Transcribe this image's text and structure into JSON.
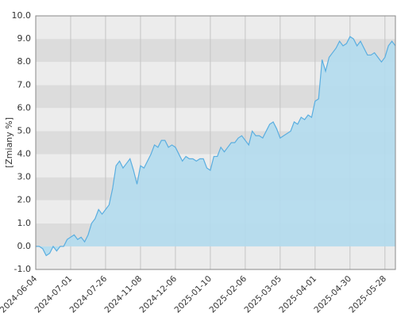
{
  "chart_data": {
    "type": "area",
    "y_label": "[Zmiany %]",
    "categories": [
      "2024-06-04",
      null,
      null,
      null,
      null,
      null,
      null,
      null,
      null,
      null,
      "2024-07-01",
      null,
      null,
      null,
      null,
      null,
      null,
      null,
      null,
      null,
      "2024-07-26",
      null,
      null,
      null,
      null,
      null,
      null,
      null,
      null,
      null,
      "2024-11-08",
      null,
      null,
      null,
      null,
      null,
      null,
      null,
      null,
      null,
      "2024-12-06",
      null,
      null,
      null,
      null,
      null,
      null,
      null,
      null,
      null,
      "2025-01-10",
      null,
      null,
      null,
      null,
      null,
      null,
      null,
      null,
      null,
      "2025-02-06",
      null,
      null,
      null,
      null,
      null,
      null,
      null,
      null,
      null,
      "2025-03-05",
      null,
      null,
      null,
      null,
      null,
      null,
      null,
      null,
      null,
      "2025-04-01",
      null,
      null,
      null,
      null,
      null,
      null,
      null,
      null,
      null,
      "2025-04-30",
      null,
      null,
      null,
      null,
      null,
      null,
      null,
      null,
      null,
      "2025-05-28",
      null,
      null,
      null
    ],
    "values": [
      0.0,
      0.0,
      -0.1,
      -0.4,
      -0.3,
      0.0,
      -0.2,
      0.0,
      0.0,
      0.3,
      0.4,
      0.5,
      0.3,
      0.4,
      0.2,
      0.5,
      1.0,
      1.2,
      1.6,
      1.4,
      1.6,
      1.8,
      2.5,
      3.5,
      3.7,
      3.4,
      3.6,
      3.8,
      3.3,
      2.7,
      3.5,
      3.4,
      3.7,
      4.0,
      4.4,
      4.3,
      4.6,
      4.6,
      4.3,
      4.4,
      4.3,
      4.0,
      3.7,
      3.9,
      3.8,
      3.8,
      3.7,
      3.8,
      3.8,
      3.4,
      3.3,
      3.9,
      3.9,
      4.3,
      4.1,
      4.3,
      4.5,
      4.5,
      4.7,
      4.8,
      4.6,
      4.4,
      5.0,
      4.8,
      4.8,
      4.7,
      5.0,
      5.3,
      5.4,
      5.1,
      4.7,
      4.8,
      4.9,
      5.0,
      5.4,
      5.3,
      5.6,
      5.5,
      5.7,
      5.6,
      6.3,
      6.4,
      8.1,
      7.6,
      8.2,
      8.4,
      8.6,
      8.9,
      8.7,
      8.8,
      9.1,
      9.0,
      8.7,
      8.9,
      8.6,
      8.3,
      8.3,
      8.4,
      8.2,
      8.0,
      8.2,
      8.7,
      8.9,
      8.7
    ],
    "color": "#5aaee0",
    "fill_color": "#b3dcee",
    "band_colors": [
      "#ececec",
      "#dcdcdc"
    ],
    "ylim": [
      -1,
      10
    ],
    "yticks": [
      {
        "value": -1,
        "label": "-1.0"
      },
      {
        "value": 0,
        "label": "0.0"
      },
      {
        "value": 1,
        "label": "1.0"
      },
      {
        "value": 2,
        "label": "2.0"
      },
      {
        "value": 3,
        "label": "3.0"
      },
      {
        "value": 4,
        "label": "4.0"
      },
      {
        "value": 5,
        "label": "5.0"
      },
      {
        "value": 6,
        "label": "6.0"
      },
      {
        "value": 7,
        "label": "7.0"
      },
      {
        "value": 8,
        "label": "8.0"
      },
      {
        "value": 9,
        "label": "9.0"
      },
      {
        "value": 10,
        "label": "10.0"
      }
    ],
    "grid": true
  }
}
